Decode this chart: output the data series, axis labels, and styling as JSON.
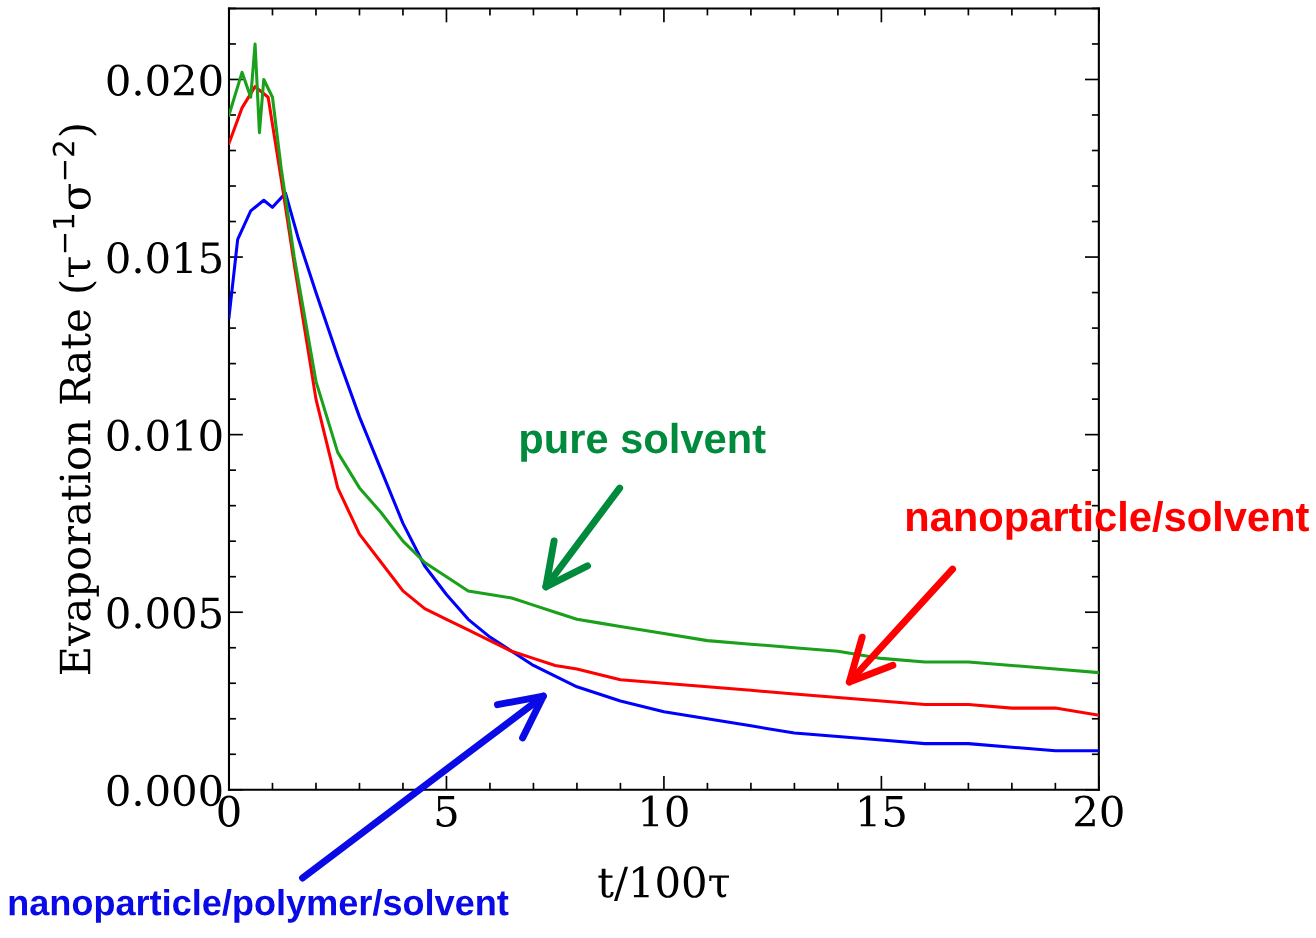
{
  "chart_data": {
    "type": "line",
    "xlabel": "t/100τ",
    "ylabel": "Evaporation Rate (τ$^{−1}$σ$^{−2}$)",
    "xlim": [
      0,
      20
    ],
    "ylim": [
      0,
      0.022
    ],
    "xticks": [
      0,
      5,
      10,
      15,
      20
    ],
    "yticks": [
      {
        "value": 0,
        "label": "0.000"
      },
      {
        "value": 0.005,
        "label": "0.005"
      },
      {
        "value": 0.01,
        "label": "0.010"
      },
      {
        "value": 0.015,
        "label": "0.015"
      },
      {
        "value": 0.02,
        "label": "0.020"
      }
    ],
    "grid": false,
    "legend": false,
    "marker": "none",
    "line_style": "solid",
    "series": [
      {
        "color": "#1aa01a",
        "x": [
          0,
          0.3,
          0.5,
          0.6,
          0.7,
          0.8,
          1.0,
          1.2,
          1.5,
          2.0,
          2.5,
          3,
          3.5,
          4,
          4.5,
          5,
          5.5,
          6,
          6.5,
          7,
          7.5,
          8,
          8.5,
          9,
          9.5,
          10,
          11,
          12,
          13,
          14,
          15,
          16,
          17,
          18,
          19,
          20
        ],
        "values": [
          0.019,
          0.0202,
          0.0195,
          0.021,
          0.0185,
          0.02,
          0.0195,
          0.0175,
          0.015,
          0.0115,
          0.0095,
          0.0085,
          0.0078,
          0.007,
          0.0064,
          0.006,
          0.0056,
          0.0055,
          0.0054,
          0.0052,
          0.005,
          0.0048,
          0.0047,
          0.0046,
          0.0045,
          0.0044,
          0.0042,
          0.0041,
          0.004,
          0.0039,
          0.0037,
          0.0036,
          0.0036,
          0.0035,
          0.0034,
          0.0033
        ]
      },
      {
        "color": "#ff0000",
        "x": [
          0,
          0.3,
          0.6,
          0.9,
          1.2,
          1.5,
          2.0,
          2.5,
          3,
          3.5,
          4,
          4.5,
          5,
          5.5,
          6,
          6.5,
          7,
          7.5,
          8,
          9,
          10,
          11,
          12,
          13,
          14,
          15,
          16,
          17,
          18,
          19,
          20
        ],
        "values": [
          0.0182,
          0.0192,
          0.0198,
          0.0195,
          0.0172,
          0.0148,
          0.011,
          0.0085,
          0.0072,
          0.0064,
          0.0056,
          0.0051,
          0.0048,
          0.0045,
          0.0042,
          0.0039,
          0.0037,
          0.0035,
          0.0034,
          0.0031,
          0.003,
          0.0029,
          0.0028,
          0.0027,
          0.0026,
          0.0025,
          0.0024,
          0.0024,
          0.0023,
          0.0023,
          0.0021
        ]
      },
      {
        "color": "#0000ff",
        "x": [
          0,
          0.2,
          0.5,
          0.8,
          1.0,
          1.3,
          1.6,
          2.0,
          2.5,
          3,
          3.5,
          4,
          4.5,
          5,
          5.5,
          6,
          6.5,
          7,
          7.5,
          8,
          9,
          10,
          11,
          12,
          13,
          14,
          15,
          16,
          17,
          18,
          19,
          20
        ],
        "values": [
          0.0133,
          0.0155,
          0.0163,
          0.0166,
          0.0164,
          0.0168,
          0.0155,
          0.014,
          0.0122,
          0.0105,
          0.009,
          0.0075,
          0.0063,
          0.0055,
          0.0048,
          0.0043,
          0.0039,
          0.0035,
          0.0032,
          0.0029,
          0.0025,
          0.0022,
          0.002,
          0.0018,
          0.0016,
          0.0015,
          0.0014,
          0.0013,
          0.0013,
          0.0012,
          0.0011,
          0.0011
        ]
      }
    ],
    "annotations": [
      "pure solvent",
      "nanoparticle/solvent",
      "nanoparticle/polymer/solvent"
    ]
  }
}
